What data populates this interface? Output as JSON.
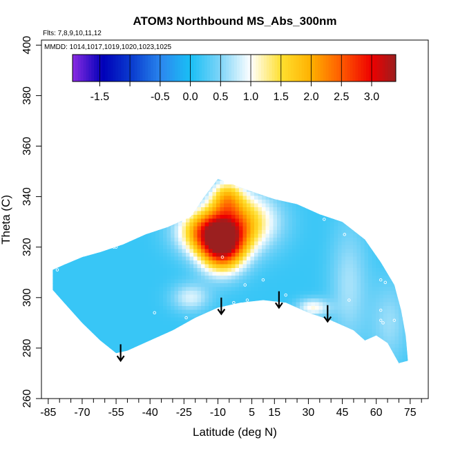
{
  "chart_data": {
    "type": "heatmap",
    "title": "ATOM3 Northbound MS_Abs_300nm",
    "subtitle_lines": [
      "Flts: 7,8,9,10,11,12",
      "MMDD: 1014,1017,1019,1020,1023,1025"
    ],
    "xlabel": "Latitude (deg N)",
    "ylabel": "Theta (C)",
    "xlim": [
      -88,
      83
    ],
    "ylim": [
      260,
      402
    ],
    "x_ticks": [
      -85,
      -70,
      -55,
      -40,
      -25,
      -10,
      5,
      15,
      30,
      45,
      60,
      75
    ],
    "x_minor_ticks": [
      -80,
      -75,
      -65,
      -60,
      -50,
      -45,
      -35,
      -30,
      -20,
      -15,
      -5,
      0,
      10,
      20,
      25,
      35,
      40,
      50,
      55,
      65,
      70,
      80
    ],
    "y_ticks": [
      260,
      280,
      300,
      320,
      340,
      360,
      380,
      400
    ],
    "colorbar": {
      "ticks": [
        -1.5,
        -0.5,
        0.0,
        0.5,
        1.0,
        1.5,
        2.0,
        2.5,
        3.0
      ],
      "tick_labels": [
        "-1.5",
        "-0.5",
        "0.0",
        "0.5",
        "1.0",
        "1.5",
        "2.0",
        "2.5",
        "3.0"
      ],
      "range": [
        -1.95,
        3.4
      ],
      "colors": [
        {
          "v": -1.95,
          "c": "#8a2be2"
        },
        {
          "v": -1.45,
          "c": "#0000b8"
        },
        {
          "v": -0.95,
          "c": "#0b3fd0"
        },
        {
          "v": -0.45,
          "c": "#2b8cf0"
        },
        {
          "v": 0.0,
          "c": "#19bff5"
        },
        {
          "v": 0.5,
          "c": "#7fd5f8"
        },
        {
          "v": 1.0,
          "c": "#ffffff"
        },
        {
          "v": 1.5,
          "c": "#ffe030"
        },
        {
          "v": 2.0,
          "c": "#ffb000"
        },
        {
          "v": 2.5,
          "c": "#ff5a00"
        },
        {
          "v": 3.0,
          "c": "#ee0000"
        },
        {
          "v": 3.4,
          "c": "#9b1f1f"
        }
      ]
    },
    "region_outline": [
      [
        -83,
        311
      ],
      [
        -78,
        313
      ],
      [
        -70,
        316
      ],
      [
        -62,
        318
      ],
      [
        -52,
        321
      ],
      [
        -42,
        325
      ],
      [
        -32,
        328
      ],
      [
        -22,
        332
      ],
      [
        -16,
        340
      ],
      [
        -10,
        347
      ],
      [
        -4,
        345
      ],
      [
        5,
        342
      ],
      [
        15,
        339
      ],
      [
        25,
        337
      ],
      [
        35,
        333
      ],
      [
        45,
        330
      ],
      [
        55,
        323
      ],
      [
        62,
        314
      ],
      [
        68,
        305
      ],
      [
        71,
        295
      ],
      [
        73,
        285
      ],
      [
        74,
        275
      ],
      [
        70,
        274
      ],
      [
        65,
        282
      ],
      [
        60,
        285
      ],
      [
        55,
        283
      ],
      [
        50,
        287
      ],
      [
        45,
        289
      ],
      [
        40,
        291
      ],
      [
        30,
        294
      ],
      [
        20,
        298
      ],
      [
        10,
        299
      ],
      [
        0,
        298
      ],
      [
        -10,
        296
      ],
      [
        -20,
        292
      ],
      [
        -30,
        287
      ],
      [
        -40,
        283
      ],
      [
        -50,
        279
      ],
      [
        -55,
        278
      ],
      [
        -62,
        283
      ],
      [
        -70,
        290
      ],
      [
        -78,
        298
      ],
      [
        -83,
        303
      ]
    ],
    "features": [
      {
        "x": -8,
        "y": 320,
        "amp": 2.6,
        "sx": 7,
        "sy": 7
      },
      {
        "x": -15,
        "y": 326,
        "amp": 1.7,
        "sx": 9,
        "sy": 6
      },
      {
        "x": 0,
        "y": 330,
        "amp": 1.6,
        "sx": 11,
        "sy": 8
      },
      {
        "x": -6,
        "y": 340,
        "amp": 1.2,
        "sx": 5,
        "sy": 5
      },
      {
        "x": -22,
        "y": 300,
        "amp": 0.7,
        "sx": 6,
        "sy": 4
      },
      {
        "x": 32,
        "y": 296,
        "amp": 0.9,
        "sx": 5,
        "sy": 2.5
      },
      {
        "x": 48,
        "y": 305,
        "amp": 0.5,
        "sx": 6,
        "sy": 18
      },
      {
        "x": 66,
        "y": 290,
        "amp": 0.45,
        "sx": 6,
        "sy": 12
      }
    ],
    "background_value": 0.15,
    "sample_points": [
      [
        -81,
        311
      ],
      [
        -56,
        320
      ],
      [
        -55,
        320
      ],
      [
        -45,
        325
      ],
      [
        -38,
        294
      ],
      [
        -24,
        292
      ],
      [
        -8,
        316
      ],
      [
        -3,
        298
      ],
      [
        2,
        305
      ],
      [
        3,
        299
      ],
      [
        10,
        307
      ],
      [
        20,
        301
      ],
      [
        37,
        331
      ],
      [
        46,
        325
      ],
      [
        48,
        299
      ],
      [
        62,
        307
      ],
      [
        62,
        295
      ],
      [
        62,
        291
      ],
      [
        63,
        290
      ],
      [
        64,
        306
      ],
      [
        68,
        291
      ]
    ],
    "arrows": [
      {
        "x": -53,
        "y_top": 281.5,
        "y_bottom": 275
      },
      {
        "x": -8.5,
        "y_top": 300,
        "y_bottom": 293.5
      },
      {
        "x": 17,
        "y_top": 302.5,
        "y_bottom": 296
      },
      {
        "x": 38.5,
        "y_top": 297,
        "y_bottom": 290.5
      }
    ]
  }
}
